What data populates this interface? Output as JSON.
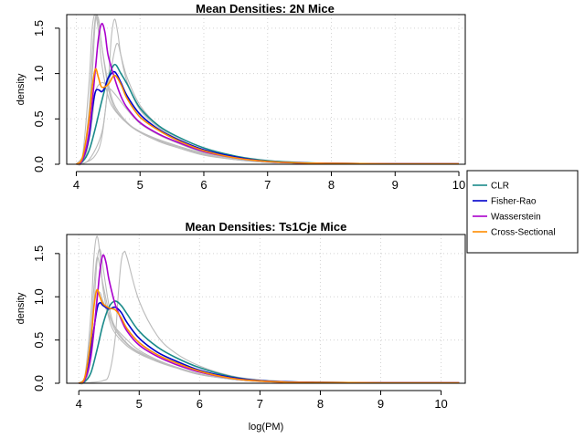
{
  "legend": {
    "entries": [
      {
        "label": "CLR",
        "color": "#1a8a8a"
      },
      {
        "label": "Fisher-Rao",
        "color": "#0000cc"
      },
      {
        "label": "Wasserstein",
        "color": "#aa00cc"
      },
      {
        "label": "Cross-Sectional",
        "color": "#ff8c00"
      }
    ]
  },
  "shared_xlabel": "log(PM)",
  "chart_data": [
    {
      "type": "line",
      "title": "Mean Densities: 2N Mice",
      "xlabel": "",
      "ylabel": "density",
      "xlim": [
        3.85,
        10.1
      ],
      "ylim": [
        0,
        1.65
      ],
      "xticks": [
        4,
        5,
        6,
        7,
        8,
        9,
        10
      ],
      "yticks": [
        0.0,
        0.5,
        1.0,
        1.5
      ],
      "xtick_labels": [
        "4",
        "5",
        "6",
        "7",
        "8",
        "9",
        "10"
      ],
      "ytick_labels": [
        "0.0",
        "0.5",
        "1.0",
        "1.5"
      ],
      "grid": true,
      "series": [
        {
          "name": "CLR",
          "color": "#1a8a8a",
          "x": [
            4.0,
            4.1,
            4.2,
            4.3,
            4.4,
            4.5,
            4.6,
            4.7,
            4.8,
            5.0,
            5.3,
            5.6,
            6.0,
            6.5,
            7.0,
            7.5,
            8.0,
            9.0,
            10.0
          ],
          "y": [
            0.0,
            0.03,
            0.15,
            0.4,
            0.7,
            0.95,
            1.1,
            1.0,
            0.88,
            0.62,
            0.42,
            0.3,
            0.18,
            0.09,
            0.04,
            0.02,
            0.01,
            0.005,
            0.005
          ]
        },
        {
          "name": "Fisher-Rao",
          "color": "#0000cc",
          "x": [
            4.0,
            4.1,
            4.2,
            4.25,
            4.3,
            4.35,
            4.4,
            4.45,
            4.5,
            4.6,
            4.7,
            4.8,
            5.0,
            5.3,
            5.6,
            6.0,
            6.5,
            7.0,
            7.5,
            8.0,
            9.0,
            10.0
          ],
          "y": [
            0.0,
            0.05,
            0.3,
            0.6,
            0.8,
            0.82,
            0.8,
            0.85,
            0.95,
            1.02,
            0.9,
            0.75,
            0.55,
            0.38,
            0.27,
            0.16,
            0.08,
            0.03,
            0.015,
            0.01,
            0.005,
            0.005
          ]
        },
        {
          "name": "Wasserstein",
          "color": "#aa00cc",
          "x": [
            4.0,
            4.1,
            4.2,
            4.3,
            4.35,
            4.4,
            4.45,
            4.5,
            4.6,
            4.7,
            4.8,
            5.0,
            5.3,
            5.6,
            6.0,
            6.5,
            7.0,
            7.5,
            8.0,
            9.0,
            10.0
          ],
          "y": [
            0.0,
            0.05,
            0.35,
            1.05,
            1.4,
            1.55,
            1.45,
            1.2,
            0.95,
            0.75,
            0.62,
            0.46,
            0.33,
            0.24,
            0.14,
            0.07,
            0.03,
            0.015,
            0.01,
            0.005,
            0.005
          ]
        },
        {
          "name": "Cross-Sectional",
          "color": "#ff8c00",
          "x": [
            4.0,
            4.1,
            4.2,
            4.25,
            4.3,
            4.35,
            4.4,
            4.5,
            4.6,
            4.7,
            4.8,
            5.0,
            5.3,
            5.6,
            6.0,
            6.5,
            7.0,
            7.5,
            8.0,
            9.0,
            10.0
          ],
          "y": [
            0.0,
            0.08,
            0.5,
            0.85,
            1.05,
            0.95,
            0.85,
            0.88,
            0.98,
            0.88,
            0.72,
            0.52,
            0.37,
            0.26,
            0.15,
            0.07,
            0.03,
            0.015,
            0.01,
            0.005,
            0.005
          ]
        },
        {
          "color": "#bbbbbb",
          "x": [
            4.0,
            4.1,
            4.2,
            4.25,
            4.3,
            4.35,
            4.4,
            4.5,
            4.6,
            4.8,
            5.0,
            5.3,
            5.6,
            6.0,
            6.5,
            7.0,
            8.0,
            10.0
          ],
          "y": [
            0.0,
            0.1,
            0.9,
            1.5,
            1.65,
            1.45,
            1.1,
            0.75,
            0.6,
            0.45,
            0.36,
            0.27,
            0.2,
            0.12,
            0.06,
            0.03,
            0.01,
            0.005
          ]
        },
        {
          "color": "#bbbbbb",
          "x": [
            4.0,
            4.1,
            4.2,
            4.25,
            4.3,
            4.35,
            4.4,
            4.5,
            4.6,
            4.8,
            5.0,
            5.3,
            5.6,
            6.0,
            6.5,
            7.0,
            8.0,
            10.0
          ],
          "y": [
            0.0,
            0.05,
            0.6,
            1.2,
            1.62,
            1.55,
            1.3,
            0.9,
            0.65,
            0.46,
            0.36,
            0.26,
            0.19,
            0.11,
            0.05,
            0.02,
            0.01,
            0.005
          ]
        },
        {
          "color": "#bbbbbb",
          "x": [
            4.0,
            4.15,
            4.3,
            4.4,
            4.5,
            4.55,
            4.6,
            4.65,
            4.7,
            4.8,
            5.0,
            5.3,
            5.6,
            6.0,
            6.5,
            7.0,
            8.0,
            10.0
          ],
          "y": [
            0.0,
            0.02,
            0.1,
            0.3,
            0.9,
            1.4,
            1.6,
            1.45,
            1.2,
            0.9,
            0.6,
            0.4,
            0.28,
            0.16,
            0.08,
            0.03,
            0.01,
            0.005
          ]
        },
        {
          "color": "#bbbbbb",
          "x": [
            4.0,
            4.2,
            4.4,
            4.5,
            4.6,
            4.65,
            4.7,
            4.8,
            5.0,
            5.3,
            5.6,
            6.0,
            6.5,
            7.0,
            8.0,
            10.0
          ],
          "y": [
            0.0,
            0.05,
            0.35,
            0.85,
            1.25,
            1.33,
            1.2,
            0.95,
            0.65,
            0.42,
            0.3,
            0.18,
            0.09,
            0.04,
            0.01,
            0.005
          ]
        },
        {
          "color": "#bbbbbb",
          "x": [
            4.0,
            4.15,
            4.25,
            4.3,
            4.35,
            4.4,
            4.5,
            4.6,
            4.8,
            5.0,
            5.3,
            5.6,
            6.0,
            6.5,
            7.0,
            8.0,
            10.0
          ],
          "y": [
            0.0,
            0.2,
            1.0,
            1.58,
            1.6,
            1.3,
            0.85,
            0.62,
            0.45,
            0.35,
            0.25,
            0.18,
            0.1,
            0.05,
            0.02,
            0.01,
            0.005
          ]
        },
        {
          "color": "#bbbbbb",
          "x": [
            4.0,
            4.15,
            4.25,
            4.3,
            4.4,
            4.5,
            4.6,
            4.8,
            5.0,
            5.3,
            5.6,
            6.0,
            6.5,
            7.0,
            8.0,
            10.0
          ],
          "y": [
            0.0,
            0.1,
            0.5,
            0.8,
            0.9,
            0.85,
            0.78,
            0.6,
            0.45,
            0.32,
            0.23,
            0.13,
            0.06,
            0.03,
            0.01,
            0.005
          ]
        }
      ]
    },
    {
      "type": "line",
      "title": "Mean Densities: Ts1Cje Mice",
      "xlabel": "log(PM)",
      "ylabel": "density",
      "xlim": [
        3.8,
        10.4
      ],
      "ylim": [
        0,
        1.72
      ],
      "xticks": [
        4,
        5,
        6,
        7,
        8,
        9,
        10
      ],
      "yticks": [
        0.0,
        0.5,
        1.0,
        1.5
      ],
      "xtick_labels": [
        "4",
        "5",
        "6",
        "7",
        "8",
        "9",
        "10"
      ],
      "ytick_labels": [
        "0.0",
        "0.5",
        "1.0",
        "1.5"
      ],
      "grid": true,
      "series": [
        {
          "name": "CLR",
          "color": "#1a8a8a",
          "x": [
            4.0,
            4.1,
            4.2,
            4.3,
            4.4,
            4.5,
            4.6,
            4.7,
            4.8,
            5.0,
            5.3,
            5.6,
            6.0,
            6.5,
            7.0,
            7.5,
            8.0,
            9.0,
            10.3
          ],
          "y": [
            0.0,
            0.02,
            0.12,
            0.38,
            0.68,
            0.88,
            0.95,
            0.9,
            0.8,
            0.6,
            0.42,
            0.3,
            0.18,
            0.08,
            0.03,
            0.015,
            0.01,
            0.005,
            0.005
          ]
        },
        {
          "name": "Fisher-Rao",
          "color": "#0000cc",
          "x": [
            4.0,
            4.1,
            4.2,
            4.3,
            4.35,
            4.4,
            4.5,
            4.6,
            4.7,
            4.8,
            5.0,
            5.3,
            5.6,
            6.0,
            6.5,
            7.0,
            7.5,
            8.0,
            9.0,
            10.3
          ],
          "y": [
            0.0,
            0.06,
            0.4,
            0.85,
            0.93,
            0.9,
            0.86,
            0.88,
            0.82,
            0.7,
            0.52,
            0.36,
            0.26,
            0.15,
            0.07,
            0.03,
            0.015,
            0.01,
            0.005,
            0.005
          ]
        },
        {
          "name": "Wasserstein",
          "color": "#aa00cc",
          "x": [
            4.0,
            4.1,
            4.2,
            4.3,
            4.35,
            4.4,
            4.45,
            4.5,
            4.6,
            4.7,
            4.8,
            5.0,
            5.3,
            5.6,
            6.0,
            6.5,
            7.0,
            7.5,
            8.0,
            9.0,
            10.3
          ],
          "y": [
            0.0,
            0.04,
            0.3,
            0.95,
            1.3,
            1.48,
            1.4,
            1.2,
            0.92,
            0.74,
            0.6,
            0.44,
            0.31,
            0.22,
            0.13,
            0.06,
            0.025,
            0.012,
            0.008,
            0.005,
            0.005
          ]
        },
        {
          "name": "Cross-Sectional",
          "color": "#ff8c00",
          "x": [
            4.0,
            4.1,
            4.2,
            4.25,
            4.3,
            4.35,
            4.4,
            4.5,
            4.6,
            4.7,
            4.8,
            5.0,
            5.3,
            5.6,
            6.0,
            6.5,
            7.0,
            7.5,
            8.0,
            9.0,
            10.3
          ],
          "y": [
            0.0,
            0.07,
            0.5,
            0.88,
            1.08,
            1.0,
            0.92,
            0.87,
            0.85,
            0.76,
            0.63,
            0.47,
            0.33,
            0.24,
            0.14,
            0.06,
            0.025,
            0.012,
            0.008,
            0.005,
            0.005
          ]
        },
        {
          "color": "#bbbbbb",
          "x": [
            4.0,
            4.1,
            4.2,
            4.25,
            4.3,
            4.35,
            4.4,
            4.5,
            4.6,
            4.8,
            5.0,
            5.3,
            5.6,
            6.0,
            6.5,
            7.0,
            8.0,
            10.3
          ],
          "y": [
            0.0,
            0.08,
            0.8,
            1.45,
            1.7,
            1.5,
            1.1,
            0.75,
            0.58,
            0.43,
            0.34,
            0.25,
            0.18,
            0.1,
            0.05,
            0.02,
            0.01,
            0.005
          ]
        },
        {
          "color": "#bbbbbb",
          "x": [
            4.0,
            4.1,
            4.2,
            4.25,
            4.3,
            4.35,
            4.4,
            4.5,
            4.6,
            4.8,
            5.0,
            5.3,
            5.6,
            6.0,
            6.5,
            7.0,
            8.0,
            10.3
          ],
          "y": [
            0.0,
            0.05,
            0.6,
            1.1,
            1.45,
            1.35,
            1.15,
            0.82,
            0.62,
            0.45,
            0.35,
            0.25,
            0.18,
            0.1,
            0.05,
            0.02,
            0.01,
            0.005
          ]
        },
        {
          "color": "#bbbbbb",
          "x": [
            4.0,
            4.2,
            4.4,
            4.5,
            4.6,
            4.65,
            4.7,
            4.75,
            4.8,
            5.0,
            5.3,
            5.6,
            6.0,
            6.5,
            7.0,
            8.0,
            10.3
          ],
          "y": [
            0.0,
            0.01,
            0.03,
            0.1,
            0.5,
            1.0,
            1.4,
            1.52,
            1.45,
            0.95,
            0.55,
            0.35,
            0.2,
            0.09,
            0.04,
            0.01,
            0.005
          ]
        },
        {
          "color": "#bbbbbb",
          "x": [
            4.0,
            4.15,
            4.25,
            4.3,
            4.35,
            4.4,
            4.5,
            4.6,
            4.8,
            5.0,
            5.3,
            5.6,
            6.0,
            6.5,
            7.0,
            8.0,
            10.3
          ],
          "y": [
            0.0,
            0.15,
            0.9,
            1.4,
            1.55,
            1.35,
            0.9,
            0.65,
            0.46,
            0.36,
            0.26,
            0.19,
            0.11,
            0.05,
            0.02,
            0.01,
            0.005
          ]
        },
        {
          "color": "#bbbbbb",
          "x": [
            4.0,
            4.15,
            4.25,
            4.3,
            4.35,
            4.4,
            4.5,
            4.6,
            4.8,
            5.0,
            5.3,
            5.6,
            6.0,
            6.5,
            7.0,
            8.0,
            10.3
          ],
          "y": [
            0.0,
            0.1,
            0.6,
            1.0,
            1.05,
            0.95,
            0.78,
            0.65,
            0.5,
            0.38,
            0.27,
            0.19,
            0.11,
            0.05,
            0.02,
            0.01,
            0.005
          ]
        }
      ]
    }
  ]
}
